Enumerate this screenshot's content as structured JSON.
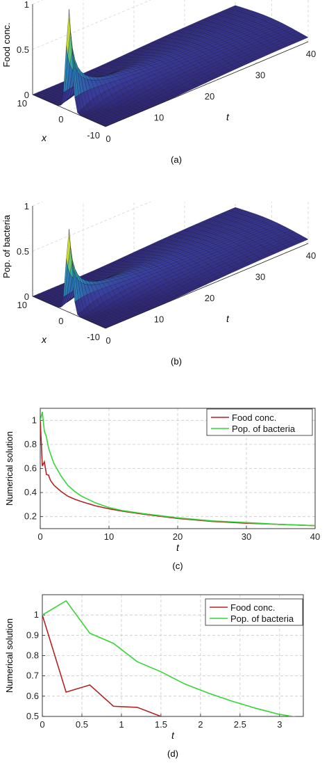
{
  "chart_data": [
    {
      "id": "a",
      "type": "surface3d",
      "caption": "(a)",
      "zlabel": "Food conc.",
      "xlabel": "x",
      "ylabel": "t",
      "x_ticks": [
        "10",
        "0",
        "-10"
      ],
      "t_ticks": [
        "0",
        "10",
        "20",
        "30",
        "40"
      ],
      "z_ticks": [
        "0",
        "0.5",
        "1"
      ],
      "xlim": [
        -10,
        10
      ],
      "tlim": [
        0,
        40
      ],
      "zlim": [
        0,
        1
      ],
      "peak": 1,
      "colormap": [
        "#2b1f66",
        "#3a3d9e",
        "#2a7fb8",
        "#2fb8a0",
        "#b9d33a",
        "#f2e21e"
      ]
    },
    {
      "id": "b",
      "type": "surface3d",
      "caption": "(b)",
      "zlabel": "Pop. of bacteria",
      "xlabel": "x",
      "ylabel": "t",
      "x_ticks": [
        "10",
        "0",
        "-10"
      ],
      "t_ticks": [
        "0",
        "10",
        "20",
        "30",
        "40"
      ],
      "z_ticks": [
        "0",
        "0.5",
        "1"
      ],
      "xlim": [
        -10,
        10
      ],
      "tlim": [
        0,
        40
      ],
      "zlim": [
        0,
        1
      ],
      "peak": 0.8,
      "colormap": [
        "#2b1f66",
        "#3a3d9e",
        "#2a7fb8",
        "#2fb8a0",
        "#b9d33a",
        "#f2e21e"
      ]
    },
    {
      "id": "c",
      "type": "line",
      "caption": "(c)",
      "xlabel": "t",
      "ylabel": "Numerical solution",
      "xlim": [
        0,
        40
      ],
      "ylim": [
        0.1,
        1.1
      ],
      "x_ticks": [
        0,
        10,
        20,
        30,
        40
      ],
      "y_ticks": [
        0.2,
        0.4,
        0.6,
        0.8,
        1
      ],
      "grid": true,
      "legend": "top-right",
      "series": [
        {
          "name": "Food conc.",
          "color": "#b22222",
          "x": [
            0,
            0.3,
            0.6,
            0.9,
            1.2,
            1.5,
            2,
            3,
            4,
            5,
            6,
            8,
            10,
            12,
            15,
            20,
            25,
            30,
            35,
            40
          ],
          "y": [
            1.0,
            0.62,
            0.655,
            0.55,
            0.545,
            0.5,
            0.46,
            0.41,
            0.37,
            0.345,
            0.325,
            0.29,
            0.265,
            0.245,
            0.22,
            0.185,
            0.16,
            0.145,
            0.135,
            0.125
          ]
        },
        {
          "name": "Pop. of bacteria",
          "color": "#33d633",
          "x": [
            0,
            0.3,
            0.6,
            0.9,
            1.2,
            1.5,
            2,
            3,
            4,
            5,
            6,
            8,
            10,
            12,
            15,
            20,
            25,
            30,
            35,
            40
          ],
          "y": [
            1.0,
            1.07,
            0.91,
            0.86,
            0.77,
            0.72,
            0.64,
            0.54,
            0.46,
            0.41,
            0.37,
            0.315,
            0.275,
            0.25,
            0.225,
            0.19,
            0.165,
            0.15,
            0.135,
            0.125
          ]
        }
      ]
    },
    {
      "id": "d",
      "type": "line",
      "caption": "(d)",
      "xlabel": "t",
      "ylabel": "Numerical solution",
      "xlim": [
        0,
        3.3
      ],
      "ylim": [
        0.5,
        1.1
      ],
      "x_ticks": [
        0,
        0.5,
        1,
        1.5,
        2,
        2.5,
        3
      ],
      "y_ticks": [
        0.5,
        0.6,
        0.7,
        0.8,
        0.9,
        1
      ],
      "grid": true,
      "legend": "top-right",
      "series": [
        {
          "name": "Food conc.",
          "color": "#b22222",
          "x": [
            0,
            0.3,
            0.6,
            0.9,
            1.2,
            1.5
          ],
          "y": [
            1.0,
            0.62,
            0.655,
            0.55,
            0.545,
            0.5
          ]
        },
        {
          "name": "Pop. of bacteria",
          "color": "#33d633",
          "x": [
            0,
            0.3,
            0.6,
            0.9,
            1.2,
            1.5,
            1.8,
            2.1,
            2.4,
            2.7,
            3.0,
            3.25
          ],
          "y": [
            1.0,
            1.07,
            0.91,
            0.86,
            0.77,
            0.72,
            0.66,
            0.615,
            0.575,
            0.54,
            0.51,
            0.495
          ]
        }
      ]
    }
  ]
}
